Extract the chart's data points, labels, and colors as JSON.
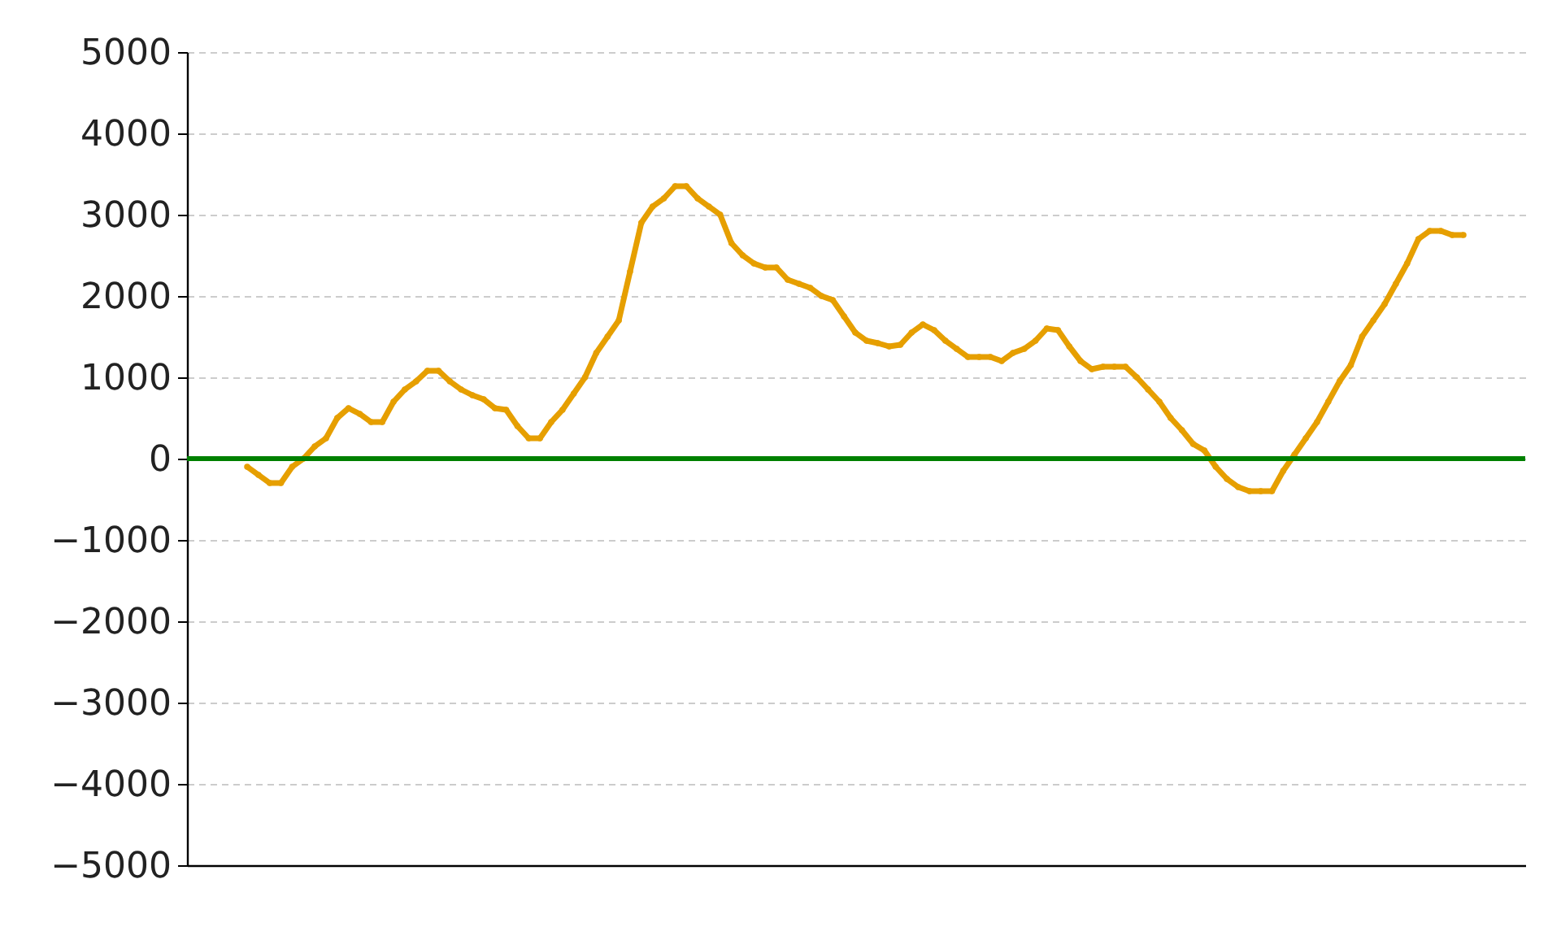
{
  "chart_data": {
    "type": "line",
    "categories": [
      null,
      null,
      null,
      null,
      null,
      null,
      null,
      null,
      null,
      null,
      null,
      null,
      null,
      null,
      null,
      null,
      null,
      null,
      null,
      null,
      null,
      null,
      null,
      null,
      null,
      null,
      null,
      null,
      null,
      null,
      null,
      null,
      null,
      null,
      null,
      null,
      null,
      null,
      null,
      null,
      null,
      null,
      null,
      null,
      null,
      null,
      null,
      null,
      null,
      null,
      null,
      null,
      null,
      null,
      null,
      null,
      null,
      null,
      null,
      null,
      null,
      null,
      null,
      null,
      null,
      null,
      null,
      null,
      null,
      null,
      null,
      null,
      null,
      null,
      null,
      null,
      null,
      null,
      null,
      null,
      null,
      null,
      null,
      null,
      null,
      null,
      null,
      null,
      null,
      null,
      null,
      null,
      null,
      null,
      null,
      null,
      null,
      null,
      null,
      null,
      null,
      null,
      null,
      null,
      null,
      null,
      null,
      null,
      null
    ],
    "series": [
      {
        "color": "#e69f00",
        "values": [
          -100,
          -200,
          -300,
          -300,
          -100,
          0,
          150,
          250,
          500,
          620,
          550,
          450,
          450,
          700,
          850,
          950,
          1080,
          1080,
          950,
          850,
          780,
          730,
          620,
          600,
          400,
          250,
          250,
          450,
          600,
          800,
          1000,
          1300,
          1500,
          1700,
          2300,
          2900,
          3100,
          3200,
          3350,
          3350,
          3200,
          3100,
          3000,
          2650,
          2500,
          2400,
          2350,
          2350,
          2200,
          2150,
          2100,
          2000,
          1950,
          1750,
          1550,
          1450,
          1420,
          1380,
          1400,
          1550,
          1650,
          1580,
          1450,
          1350,
          1250,
          1250,
          1250,
          1200,
          1300,
          1350,
          1450,
          1600,
          1580,
          1380,
          1200,
          1100,
          1130,
          1130,
          1130,
          1000,
          850,
          700,
          500,
          350,
          180,
          100,
          -100,
          -250,
          -350,
          -400,
          -400,
          -400,
          -150,
          50,
          250,
          450,
          700,
          950,
          1150,
          1500,
          1700,
          1900,
          2150,
          2400,
          2700,
          2800,
          2800,
          2750,
          2750
        ]
      }
    ],
    "ylim": [
      -5000,
      5000
    ],
    "yticks": [
      -5000,
      -4000,
      -3000,
      -2000,
      -1000,
      0,
      1000,
      2000,
      3000,
      4000,
      5000
    ],
    "grid": "y",
    "marker": "circle",
    "line_style": "solid",
    "tick_labels": "y",
    "ref_lines": [
      {
        "axis": "y",
        "value": 0,
        "color": "#008000"
      }
    ]
  }
}
